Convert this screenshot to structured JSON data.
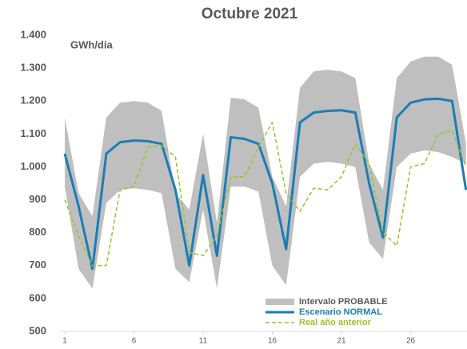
{
  "chart_data": {
    "type": "line",
    "title": "Octubre 2021",
    "y_label": "GWh/día",
    "x": [
      1,
      2,
      3,
      4,
      5,
      6,
      7,
      8,
      9,
      10,
      11,
      12,
      13,
      14,
      15,
      16,
      17,
      18,
      19,
      20,
      21,
      22,
      23,
      24,
      25,
      26,
      27,
      28,
      29,
      30
    ],
    "xlim": [
      1,
      31
    ],
    "xticks": [
      1,
      6,
      11,
      16,
      21,
      26
    ],
    "ylim": [
      500,
      1400
    ],
    "yticks": [
      500,
      {
        "value": 600,
        "label": "600"
      },
      700,
      800,
      900,
      {
        "value": 1000,
        "label": "1.000"
      },
      {
        "value": 1100,
        "label": "1.100"
      },
      {
        "value": 1200,
        "label": "1.200"
      },
      {
        "value": 1300,
        "label": "1.300"
      },
      {
        "value": 1400,
        "label": "1.400"
      }
    ],
    "band": {
      "name": "Intervalo PROBABLE",
      "color": "#bfbfbf",
      "upper": [
        1150,
        920,
        850,
        1150,
        1195,
        1200,
        1195,
        1170,
        920,
        870,
        1100,
        830,
        1210,
        1205,
        1180,
        970,
        880,
        1240,
        1290,
        1295,
        1290,
        1270,
        1010,
        930,
        1270,
        1320,
        1335,
        1335,
        1310,
        1070
      ],
      "lower": [
        940,
        690,
        630,
        890,
        930,
        935,
        930,
        920,
        690,
        650,
        870,
        630,
        940,
        940,
        925,
        700,
        640,
        970,
        1010,
        1015,
        1010,
        1000,
        770,
        720,
        1000,
        1040,
        1050,
        1045,
        1030,
        1010
      ]
    },
    "series": [
      {
        "name": "Escenario NORMAL",
        "color": "#1a7db5",
        "dashed": false,
        "values": [
          1040,
          880,
          690,
          1040,
          1075,
          1080,
          1078,
          1070,
          930,
          700,
          975,
          730,
          1090,
          1085,
          1070,
          950,
          750,
          1135,
          1165,
          1170,
          1172,
          1165,
          950,
          785,
          1150,
          1195,
          1205,
          1207,
          1200,
          930
        ]
      },
      {
        "name": "Real año anterior",
        "color": "#9cc32a",
        "dashed": true,
        "values": [
          900,
          790,
          700,
          700,
          930,
          940,
          1060,
          1065,
          1030,
          740,
          730,
          790,
          970,
          970,
          1060,
          1135,
          920,
          865,
          935,
          930,
          970,
          1070,
          1010,
          800,
          760,
          1000,
          1010,
          1100,
          1110,
          1000
        ]
      }
    ]
  }
}
